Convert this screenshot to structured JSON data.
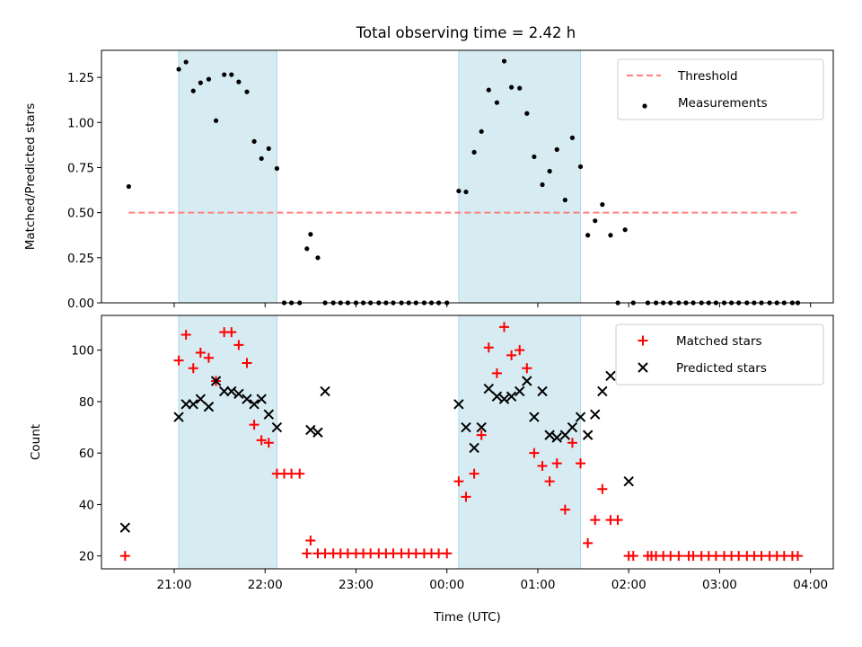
{
  "title": "Total observing time = 2.42 h",
  "colors": {
    "threshold": "#ff7f7f",
    "measurements": "#000000",
    "matched": "#ff0000",
    "predicted": "#000000",
    "shade": "#add8e6"
  },
  "chart_data": [
    {
      "type": "scatter",
      "ylabel": "Matched/Predicted stars",
      "xlim": [
        20.2,
        28.25
      ],
      "ylim": [
        0,
        1.4
      ],
      "yticks": [
        0.0,
        0.25,
        0.5,
        0.75,
        1.0,
        1.25
      ],
      "ytick_labels": [
        "0.00",
        "0.25",
        "0.50",
        "0.75",
        "1.00",
        "1.25"
      ],
      "legend": {
        "placement": "upper right",
        "entries": [
          "Threshold",
          "Measurements"
        ]
      },
      "shaded_intervals": [
        [
          21.05,
          22.13
        ],
        [
          24.13,
          25.47
        ]
      ],
      "threshold": {
        "name": "Threshold",
        "value": 0.5,
        "x_range": [
          20.5,
          27.86
        ]
      },
      "series": [
        {
          "name": "Measurements",
          "x": [
            20.5,
            21.05,
            21.13,
            21.21,
            21.29,
            21.38,
            21.46,
            21.55,
            21.63,
            21.71,
            21.8,
            21.88,
            21.96,
            22.04,
            22.13,
            22.21,
            22.29,
            22.38,
            22.46,
            22.5,
            22.58,
            22.66,
            22.75,
            22.83,
            22.91,
            23.0,
            23.08,
            23.16,
            23.25,
            23.33,
            23.41,
            23.5,
            23.58,
            23.66,
            23.75,
            23.83,
            23.91,
            24.0,
            24.13,
            24.21,
            24.3,
            24.38,
            24.46,
            24.55,
            24.63,
            24.71,
            24.8,
            24.88,
            24.96,
            25.05,
            25.13,
            25.21,
            25.3,
            25.38,
            25.47,
            25.55,
            25.63,
            25.71,
            25.8,
            25.88,
            25.96,
            26.05,
            26.21,
            26.3,
            26.38,
            26.46,
            26.55,
            26.63,
            26.71,
            26.8,
            26.88,
            26.96,
            27.05,
            27.13,
            27.21,
            27.3,
            27.38,
            27.46,
            27.55,
            27.63,
            27.71,
            27.8,
            27.86
          ],
          "y": [
            0.645,
            1.295,
            1.335,
            1.175,
            1.22,
            1.24,
            1.01,
            1.265,
            1.265,
            1.225,
            1.17,
            0.895,
            0.8,
            0.855,
            0.745,
            0.0,
            0.0,
            0.0,
            0.3,
            0.38,
            0.25,
            0.0,
            0.0,
            0.0,
            0.0,
            0.0,
            0.0,
            0.0,
            0.0,
            0.0,
            0.0,
            0.0,
            0.0,
            0.0,
            0.0,
            0.0,
            0.0,
            0.0,
            0.62,
            0.615,
            0.835,
            0.95,
            1.18,
            1.11,
            1.34,
            1.195,
            1.19,
            1.05,
            0.81,
            0.655,
            0.73,
            0.85,
            0.57,
            0.915,
            0.755,
            0.375,
            0.455,
            0.545,
            0.375,
            0.0,
            0.405,
            0.0,
            0.0,
            0.0,
            0.0,
            0.0,
            0.0,
            0.0,
            0.0,
            0.0,
            0.0,
            0.0,
            0.0,
            0.0,
            0.0,
            0.0,
            0.0,
            0.0,
            0.0,
            0.0,
            0.0,
            0.0,
            0.0
          ]
        }
      ]
    },
    {
      "type": "scatter",
      "xlabel": "Time (UTC)",
      "ylabel": "Count",
      "xlim": [
        20.2,
        28.25
      ],
      "ylim": [
        15,
        113.5
      ],
      "yticks": [
        20,
        40,
        60,
        80,
        100
      ],
      "ytick_labels": [
        "20",
        "40",
        "60",
        "80",
        "100"
      ],
      "xticks": [
        21,
        22,
        23,
        24,
        25,
        26,
        27,
        28
      ],
      "xtick_labels": [
        "21:00",
        "22:00",
        "23:00",
        "00:00",
        "01:00",
        "02:00",
        "03:00",
        "04:00"
      ],
      "legend": {
        "placement": "upper right",
        "entries": [
          "Matched stars",
          "Predicted stars"
        ]
      },
      "shaded_intervals": [
        [
          21.05,
          22.13
        ],
        [
          24.13,
          25.47
        ]
      ],
      "series": [
        {
          "name": "Matched stars",
          "marker": "plus",
          "x": [
            20.46,
            21.05,
            21.13,
            21.21,
            21.29,
            21.38,
            21.46,
            21.55,
            21.63,
            21.71,
            21.8,
            21.88,
            21.96,
            22.04,
            22.13,
            22.21,
            22.29,
            22.38,
            22.46,
            22.5,
            22.58,
            22.66,
            22.75,
            22.83,
            22.91,
            23.0,
            23.08,
            23.16,
            23.25,
            23.33,
            23.41,
            23.5,
            23.58,
            23.66,
            23.75,
            23.83,
            23.91,
            24.0,
            24.13,
            24.21,
            24.3,
            24.38,
            24.46,
            24.55,
            24.63,
            24.71,
            24.8,
            24.88,
            24.96,
            25.05,
            25.13,
            25.21,
            25.3,
            25.38,
            25.47,
            25.55,
            25.63,
            25.71,
            25.8,
            25.88,
            26.0,
            26.05,
            26.21,
            26.25,
            26.3,
            26.38,
            26.46,
            26.55,
            26.66,
            26.71,
            26.8,
            26.88,
            26.96,
            27.05,
            27.13,
            27.21,
            27.3,
            27.38,
            27.46,
            27.55,
            27.63,
            27.71,
            27.8,
            27.86
          ],
          "y": [
            20,
            96,
            106,
            93,
            99,
            97,
            88,
            107,
            107,
            102,
            95,
            71,
            65,
            64,
            52,
            52,
            52,
            52,
            21,
            26,
            21,
            21,
            21,
            21,
            21,
            21,
            21,
            21,
            21,
            21,
            21,
            21,
            21,
            21,
            21,
            21,
            21,
            21,
            49,
            43,
            52,
            67,
            101,
            91,
            109,
            98,
            100,
            93,
            60,
            55,
            49,
            56,
            38,
            64,
            56,
            25,
            34,
            46,
            34,
            34,
            20,
            20,
            20,
            20,
            20,
            20,
            20,
            20,
            20,
            20,
            20,
            20,
            20,
            20,
            20,
            20,
            20,
            20,
            20,
            20,
            20,
            20,
            20,
            20
          ]
        },
        {
          "name": "Predicted stars",
          "marker": "x",
          "x": [
            20.46,
            21.05,
            21.13,
            21.21,
            21.29,
            21.38,
            21.46,
            21.55,
            21.63,
            21.71,
            21.8,
            21.88,
            21.96,
            22.04,
            22.13,
            22.5,
            22.58,
            22.66,
            24.13,
            24.21,
            24.3,
            24.38,
            24.46,
            24.55,
            24.63,
            24.71,
            24.8,
            24.88,
            24.96,
            25.05,
            25.13,
            25.21,
            25.3,
            25.38,
            25.47,
            25.55,
            25.63,
            25.71,
            25.8,
            26.0
          ],
          "y": [
            31,
            74,
            79,
            79,
            81,
            78,
            88,
            84,
            84,
            83,
            81,
            79,
            81,
            75,
            70,
            69,
            68,
            84,
            79,
            70,
            62,
            70,
            85,
            82,
            81,
            82,
            84,
            88,
            74,
            84,
            67,
            66,
            67,
            70,
            74,
            67,
            75,
            84,
            90,
            49
          ]
        }
      ]
    }
  ]
}
